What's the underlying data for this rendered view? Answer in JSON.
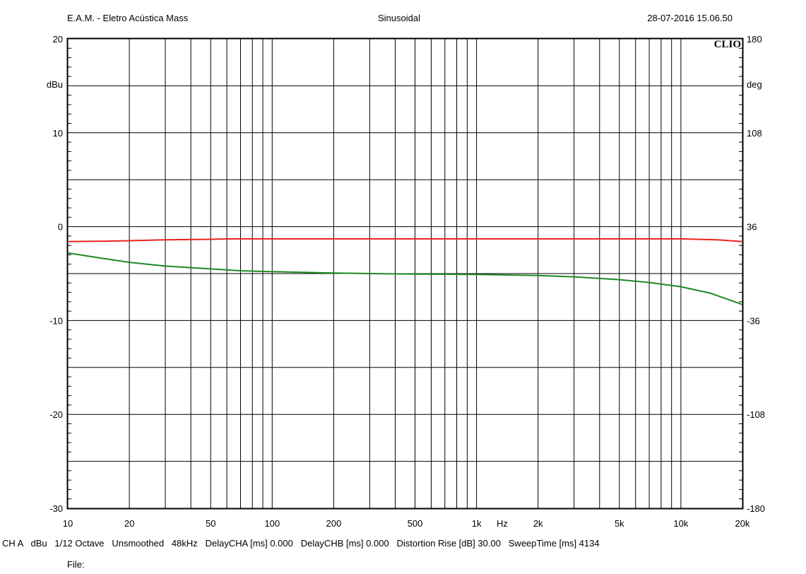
{
  "header": {
    "left": "E.A.M. - Eletro Acústica Mass",
    "center": "Sinusoidal",
    "right": "28-07-2016 15.06.50"
  },
  "logo_text": "CLIO",
  "footer": {
    "settings": "CH A   dBu   1/12 Octave   Unsmoothed   48kHz   DelayCHA [ms] 0.000   DelayCHB [ms] 0.000   Distortion Rise [dB] 30.00   SweepTime [ms] 4134",
    "file_label": "File:"
  },
  "colors": {
    "series_red": "#e8231f",
    "series_green": "#1e8a22",
    "grid": "#000000"
  },
  "chart_data": {
    "type": "line",
    "x_scale": "log",
    "xlim": [
      10,
      20000
    ],
    "xlabel": "Hz",
    "x_ticks": [
      {
        "value": 10,
        "label": "10"
      },
      {
        "value": 20,
        "label": "20"
      },
      {
        "value": 50,
        "label": "50"
      },
      {
        "value": 100,
        "label": "100"
      },
      {
        "value": 200,
        "label": "200"
      },
      {
        "value": 500,
        "label": "500"
      },
      {
        "value": 1000,
        "label": "1k"
      },
      {
        "value": 2000,
        "label": "2k"
      },
      {
        "value": 5000,
        "label": "5k"
      },
      {
        "value": 10000,
        "label": "10k"
      },
      {
        "value": 20000,
        "label": "20k"
      }
    ],
    "ylim": [
      -30,
      20
    ],
    "ylabel": "dBu",
    "y_ticks": [
      {
        "value": 20,
        "label": "20"
      },
      {
        "value": 10,
        "label": "10"
      },
      {
        "value": 0,
        "label": "0"
      },
      {
        "value": -10,
        "label": "-10"
      },
      {
        "value": -20,
        "label": "-20"
      },
      {
        "value": -30,
        "label": "-30"
      }
    ],
    "y2lim": [
      -180,
      180
    ],
    "y2label": "deg",
    "y2_ticks": [
      {
        "value": 180,
        "label": "180"
      },
      {
        "value": 108,
        "label": "108"
      },
      {
        "value": 36,
        "label": "36"
      },
      {
        "value": -36,
        "label": "-36"
      },
      {
        "value": -108,
        "label": "-108"
      },
      {
        "value": -180,
        "label": "-180"
      }
    ],
    "grid": true,
    "series": [
      {
        "color": "#e8231f",
        "x": [
          10,
          15,
          20,
          30,
          50,
          63,
          100,
          200,
          500,
          1000,
          2000,
          5000,
          10000,
          15000,
          20000
        ],
        "y": [
          -1.6,
          -1.55,
          -1.5,
          -1.4,
          -1.35,
          -1.3,
          -1.3,
          -1.3,
          -1.3,
          -1.3,
          -1.3,
          -1.3,
          -1.3,
          -1.4,
          -1.6
        ]
      },
      {
        "color": "#1e8a22",
        "x": [
          10,
          15,
          20,
          30,
          50,
          70,
          100,
          200,
          300,
          500,
          1000,
          2000,
          3000,
          5000,
          7000,
          10000,
          14000,
          20000
        ],
        "y": [
          -2.8,
          -3.4,
          -3.8,
          -4.2,
          -4.5,
          -4.7,
          -4.8,
          -4.95,
          -5.0,
          -5.05,
          -5.1,
          -5.2,
          -5.35,
          -5.65,
          -5.95,
          -6.4,
          -7.1,
          -8.3
        ]
      }
    ]
  }
}
